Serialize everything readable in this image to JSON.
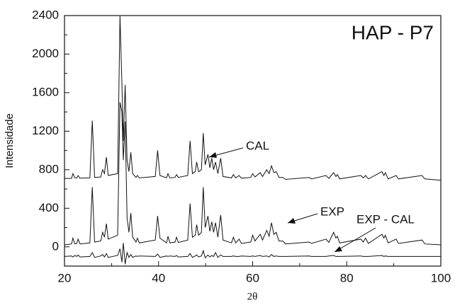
{
  "chart_data": {
    "type": "line",
    "title": "HAP - P7",
    "x_label": "2θ",
    "y_label": "Intensidade",
    "annotations": [
      "CAL",
      "EXP",
      "EXP - CAL"
    ],
    "x": [
      20,
      21.5,
      21.8,
      22.2,
      22.6,
      22.9,
      23.3,
      25.4,
      25.9,
      26.4,
      27.7,
      28.1,
      28.5,
      28.9,
      29.3,
      31.3,
      31.8,
      32.2,
      32.5,
      32.9,
      33.3,
      33.7,
      34.1,
      34.5,
      35.2,
      35.5,
      35.9,
      39.3,
      39.8,
      40.3,
      41.7,
      42,
      42.4,
      43.5,
      43.8,
      44.2,
      46.2,
      46.7,
      47.2,
      47.8,
      48.1,
      48.5,
      49.1,
      49.5,
      49.9,
      50.5,
      50.9,
      51.3,
      51.7,
      52.1,
      52.6,
      53.2,
      53.7,
      55.5,
      55.9,
      56.4,
      57.1,
      57.6,
      59.6,
      60,
      60.5,
      61.6,
      62.1,
      63,
      63.5,
      64,
      64.5,
      65,
      65.6,
      66.4,
      67,
      72,
      72.5,
      75.6,
      76.2,
      77.2,
      77.7,
      78,
      78.5,
      83,
      83.5,
      84,
      84.6,
      87.5,
      87.9,
      88.2,
      88.8,
      90.5,
      91,
      96,
      96.6,
      100
    ],
    "series": [
      {
        "name": "CAL",
        "color": "#111111",
        "values": [
          710,
          710,
          760,
          715,
          715,
          740,
          712,
          715,
          1310,
          720,
          725,
          800,
          760,
          930,
          740,
          760,
          2400,
          1700,
          1100,
          1680,
          900,
          780,
          980,
          760,
          720,
          740,
          715,
          730,
          1000,
          740,
          715,
          760,
          715,
          720,
          750,
          720,
          740,
          1100,
          760,
          780,
          880,
          780,
          800,
          1180,
          850,
          960,
          820,
          920,
          800,
          880,
          760,
          920,
          730,
          715,
          750,
          715,
          740,
          712,
          720,
          760,
          725,
          770,
          730,
          800,
          760,
          840,
          770,
          780,
          720,
          720,
          700,
          720,
          705,
          740,
          710,
          770,
          730,
          750,
          705,
          740,
          715,
          740,
          705,
          780,
          740,
          770,
          705,
          740,
          705,
          740,
          705,
          690
        ]
      },
      {
        "name": "EXP",
        "color": "#111111",
        "values": [
          20,
          30,
          90,
          30,
          35,
          80,
          30,
          40,
          620,
          50,
          60,
          150,
          100,
          240,
          80,
          120,
          1500,
          1400,
          900,
          1300,
          300,
          150,
          350,
          100,
          50,
          90,
          40,
          70,
          320,
          90,
          40,
          110,
          40,
          50,
          100,
          45,
          70,
          450,
          100,
          120,
          230,
          120,
          150,
          620,
          200,
          320,
          160,
          260,
          150,
          250,
          100,
          330,
          70,
          40,
          100,
          40,
          80,
          35,
          50,
          120,
          60,
          130,
          70,
          170,
          110,
          250,
          130,
          150,
          60,
          60,
          30,
          50,
          35,
          80,
          45,
          150,
          90,
          110,
          40,
          80,
          50,
          90,
          35,
          130,
          90,
          120,
          40,
          80,
          35,
          70,
          30,
          20
        ]
      },
      {
        "name": "EXP - CAL",
        "color": "#111111",
        "values": [
          -100,
          -95,
          -105,
          -90,
          -100,
          -85,
          -105,
          -100,
          -60,
          -110,
          -95,
          -80,
          -105,
          -70,
          -110,
          -90,
          -20,
          -160,
          40,
          -180,
          -60,
          -110,
          -80,
          -110,
          -95,
          -100,
          -95,
          -100,
          -75,
          -110,
          -95,
          -100,
          -95,
          -100,
          -90,
          -105,
          -100,
          -70,
          -110,
          -95,
          -85,
          -105,
          -95,
          -40,
          -115,
          -85,
          -105,
          -90,
          -100,
          -60,
          -110,
          -85,
          -100,
          -100,
          -95,
          -100,
          -100,
          -95,
          -100,
          -95,
          -100,
          -90,
          -100,
          -95,
          -105,
          -80,
          -100,
          -95,
          -100,
          -100,
          -100,
          -95,
          -100,
          -100,
          -95,
          -90,
          -100,
          -100,
          -100,
          -95,
          -100,
          -100,
          -100,
          -90,
          -100,
          -95,
          -100,
          -100,
          -100,
          -100,
          -100,
          -100
        ]
      }
    ],
    "xlim": [
      20,
      100
    ],
    "xticks": [
      20,
      40,
      60,
      80,
      100
    ],
    "ylim": [
      -200,
      2400
    ],
    "yticks": [
      0,
      400,
      800,
      1200,
      1600,
      2000,
      2400
    ]
  }
}
